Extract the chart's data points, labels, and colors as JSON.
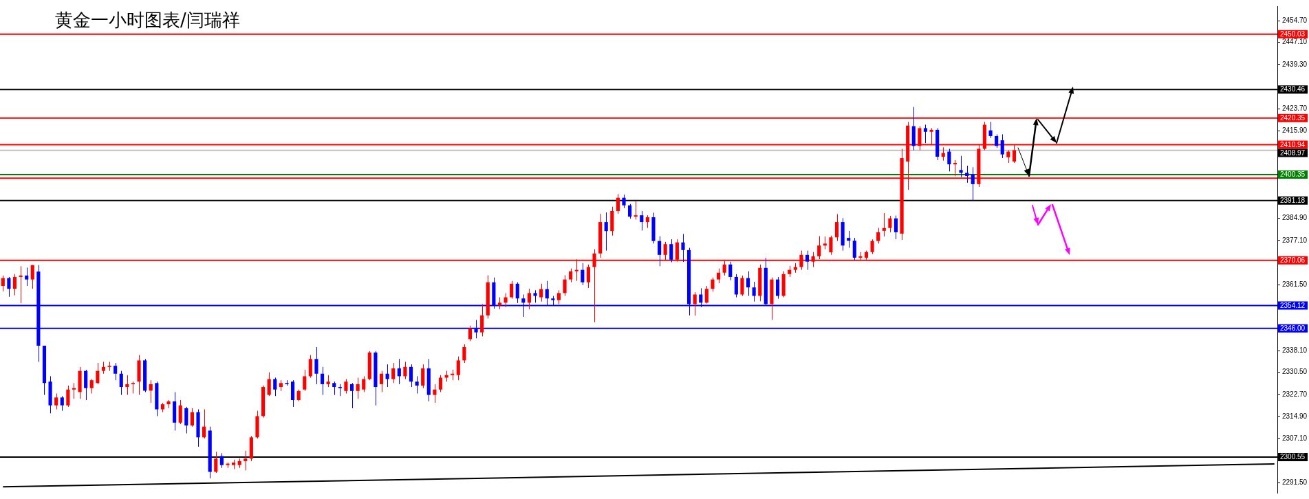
{
  "chart_data": {
    "type": "candlestick",
    "title": "黄金一小时图表/闫瑞祥",
    "categories": [
      null,
      null,
      null,
      null,
      null,
      null,
      null,
      null,
      null,
      null,
      null,
      null,
      null,
      null,
      null,
      null,
      null,
      null,
      null,
      null,
      null,
      null,
      null,
      null,
      null,
      null,
      null,
      null,
      null,
      null,
      null,
      null,
      null,
      null,
      null,
      null,
      null,
      null,
      null,
      null,
      null,
      null,
      null,
      null,
      null,
      null,
      null,
      null,
      null,
      null,
      null,
      null,
      null,
      null,
      null,
      null,
      null,
      null,
      null,
      null,
      null,
      null,
      null,
      null,
      null,
      null,
      null,
      null,
      null,
      null,
      null,
      null,
      null,
      null,
      null,
      null,
      null,
      null,
      null,
      null,
      null,
      null,
      null,
      null,
      null,
      null,
      null,
      null,
      null,
      null,
      null,
      null,
      null,
      null,
      null,
      null,
      null,
      null,
      null,
      null,
      null,
      null,
      null,
      null,
      null,
      null,
      null,
      null,
      null,
      null,
      null,
      null,
      null,
      null,
      null,
      null,
      null,
      null,
      null,
      null,
      null,
      null,
      null,
      null,
      null,
      null,
      null,
      null,
      null,
      null,
      null,
      null,
      null,
      null,
      null,
      null,
      null,
      null,
      null,
      null,
      null,
      null,
      null,
      null,
      null,
      null,
      null,
      null,
      null,
      null,
      null,
      null,
      null,
      null,
      null,
      null,
      null,
      null,
      null,
      null,
      null,
      null,
      null,
      null,
      null,
      null,
      null,
      null,
      null,
      null,
      null,
      null,
      null,
      null,
      null,
      null,
      null,
      null,
      null,
      null,
      null,
      null,
      null,
      null,
      null,
      null,
      null,
      null,
      null,
      null,
      null,
      null,
      null,
      null,
      null,
      null,
      null,
      null,
      null,
      null,
      null,
      null,
      null,
      null,
      null,
      null,
      null,
      null,
      null,
      null,
      null,
      null,
      null,
      null,
      null,
      null
    ],
    "series": [
      {
        "ohlc": [
          [
            2361.0,
            2364.7,
            2359.1,
            2363.8
          ],
          [
            2363.8,
            2364.2,
            2357.2,
            2360.0
          ],
          [
            2360.0,
            2365.2,
            2357.7,
            2364.2
          ],
          [
            2364.2,
            2368.0,
            2354.9,
            2364.7
          ],
          [
            2364.7,
            2367.5,
            2361.0,
            2363.3
          ],
          [
            2363.3,
            2368.4,
            2360.0,
            2368.4
          ],
          [
            2366.1,
            2368.4,
            2334.2,
            2339.9
          ],
          [
            2339.9,
            2339.9,
            2322.5,
            2326.7
          ],
          [
            2327.2,
            2329.1,
            2316.0,
            2318.8
          ],
          [
            2318.8,
            2323.0,
            2317.4,
            2321.6
          ],
          [
            2321.6,
            2322.1,
            2316.9,
            2318.8
          ],
          [
            2318.8,
            2325.8,
            2318.3,
            2324.4
          ],
          [
            2324.4,
            2326.7,
            2321.1,
            2324.9
          ],
          [
            2323.5,
            2332.4,
            2321.1,
            2331.0
          ],
          [
            2331.0,
            2331.4,
            2320.7,
            2324.9
          ],
          [
            2324.9,
            2328.1,
            2323.0,
            2327.7
          ],
          [
            2326.7,
            2333.8,
            2326.3,
            2331.0
          ],
          [
            2331.0,
            2334.2,
            2330.0,
            2332.4
          ],
          [
            2332.4,
            2334.2,
            2331.0,
            2332.8
          ],
          [
            2332.8,
            2333.8,
            2327.7,
            2330.0
          ],
          [
            2330.0,
            2331.0,
            2322.5,
            2325.3
          ],
          [
            2325.3,
            2329.5,
            2322.5,
            2326.3
          ],
          [
            2326.3,
            2327.2,
            2323.0,
            2326.7
          ],
          [
            2327.2,
            2336.6,
            2322.5,
            2334.7
          ],
          [
            2334.7,
            2335.2,
            2323.5,
            2324.0
          ],
          [
            2324.0,
            2327.7,
            2319.7,
            2326.3
          ],
          [
            2326.7,
            2327.2,
            2315.0,
            2317.4
          ],
          [
            2317.4,
            2319.7,
            2316.4,
            2319.2
          ],
          [
            2319.2,
            2320.7,
            2317.8,
            2320.2
          ],
          [
            2320.2,
            2323.5,
            2309.9,
            2312.7
          ],
          [
            2312.7,
            2320.7,
            2312.2,
            2318.8
          ],
          [
            2317.8,
            2318.3,
            2308.9,
            2311.7
          ],
          [
            2311.7,
            2317.8,
            2311.3,
            2316.4
          ],
          [
            2316.4,
            2317.4,
            2304.2,
            2307.5
          ],
          [
            2307.5,
            2317.4,
            2307.1,
            2311.3
          ],
          [
            2309.9,
            2311.3,
            2293.0,
            2295.3
          ],
          [
            2295.3,
            2302.4,
            2294.9,
            2300.0
          ],
          [
            2300.9,
            2301.9,
            2296.7,
            2297.7
          ],
          [
            2297.7,
            2298.6,
            2296.7,
            2298.2
          ],
          [
            2297.7,
            2299.6,
            2296.3,
            2298.6
          ],
          [
            2297.7,
            2300.0,
            2296.7,
            2299.1
          ],
          [
            2299.1,
            2302.8,
            2295.8,
            2300.0
          ],
          [
            2300.0,
            2308.0,
            2299.1,
            2307.5
          ],
          [
            2307.5,
            2316.9,
            2307.1,
            2315.0
          ],
          [
            2315.0,
            2325.8,
            2314.5,
            2325.3
          ],
          [
            2322.5,
            2330.5,
            2322.1,
            2328.1
          ],
          [
            2328.1,
            2328.6,
            2322.1,
            2324.4
          ],
          [
            2325.3,
            2327.7,
            2323.9,
            2326.7
          ],
          [
            2326.7,
            2327.7,
            2325.8,
            2326.3
          ],
          [
            2327.2,
            2327.7,
            2318.3,
            2320.7
          ],
          [
            2320.7,
            2324.4,
            2320.2,
            2323.9
          ],
          [
            2324.4,
            2331.4,
            2323.9,
            2329.1
          ],
          [
            2329.1,
            2336.6,
            2328.6,
            2335.2
          ],
          [
            2335.2,
            2339.4,
            2326.3,
            2330.0
          ],
          [
            2330.0,
            2332.4,
            2322.5,
            2326.3
          ],
          [
            2326.3,
            2329.5,
            2325.3,
            2327.2
          ],
          [
            2326.7,
            2327.2,
            2322.5,
            2325.3
          ],
          [
            2325.3,
            2326.3,
            2322.1,
            2324.9
          ],
          [
            2323.9,
            2328.1,
            2323.0,
            2327.2
          ],
          [
            2326.3,
            2326.7,
            2317.8,
            2323.9
          ],
          [
            2323.9,
            2328.6,
            2321.1,
            2326.3
          ],
          [
            2324.4,
            2329.1,
            2323.5,
            2328.1
          ],
          [
            2328.1,
            2338.0,
            2327.7,
            2337.5
          ],
          [
            2337.5,
            2338.0,
            2318.8,
            2325.3
          ],
          [
            2326.3,
            2331.0,
            2323.5,
            2330.0
          ],
          [
            2330.0,
            2333.3,
            2325.3,
            2328.1
          ],
          [
            2328.1,
            2333.8,
            2326.7,
            2331.9
          ],
          [
            2331.9,
            2335.2,
            2326.3,
            2329.1
          ],
          [
            2329.1,
            2334.2,
            2328.1,
            2332.4
          ],
          [
            2332.4,
            2333.3,
            2325.3,
            2327.2
          ],
          [
            2327.2,
            2329.1,
            2323.0,
            2325.8
          ],
          [
            2325.8,
            2333.3,
            2324.9,
            2331.9
          ],
          [
            2331.9,
            2335.2,
            2320.2,
            2322.5
          ],
          [
            2322.5,
            2326.3,
            2319.7,
            2324.4
          ],
          [
            2324.4,
            2329.5,
            2323.5,
            2328.6
          ],
          [
            2328.6,
            2331.0,
            2327.2,
            2329.5
          ],
          [
            2329.5,
            2331.4,
            2327.7,
            2330.0
          ],
          [
            2329.5,
            2336.1,
            2327.7,
            2334.7
          ],
          [
            2334.7,
            2340.4,
            2333.8,
            2339.4
          ],
          [
            2342.2,
            2347.0,
            2341.5,
            2346.0
          ],
          [
            2345.9,
            2349.0,
            2342.5,
            2344.6
          ],
          [
            2344.6,
            2354.6,
            2343.2,
            2350.6
          ],
          [
            2350.6,
            2364.8,
            2349.5,
            2362.3
          ],
          [
            2362.3,
            2364.0,
            2353.0,
            2354.1
          ],
          [
            2354.1,
            2357.0,
            2352.8,
            2355.1
          ],
          [
            2355.1,
            2358.5,
            2353.5,
            2357.0
          ],
          [
            2357.0,
            2362.8,
            2356.5,
            2361.8
          ],
          [
            2361.8,
            2362.3,
            2355.0,
            2356.6
          ],
          [
            2356.6,
            2358.0,
            2350.1,
            2355.1
          ],
          [
            2355.1,
            2360.0,
            2352.8,
            2358.5
          ],
          [
            2358.5,
            2359.5,
            2355.1,
            2357.5
          ],
          [
            2357.0,
            2361.8,
            2355.5,
            2359.9
          ],
          [
            2359.9,
            2362.8,
            2354.1,
            2356.6
          ],
          [
            2356.6,
            2357.5,
            2354.1,
            2356.0
          ],
          [
            2356.0,
            2359.5,
            2354.6,
            2358.5
          ],
          [
            2358.5,
            2364.8,
            2357.5,
            2363.3
          ],
          [
            2363.3,
            2367.2,
            2362.3,
            2366.2
          ],
          [
            2366.2,
            2370.4,
            2362.8,
            2366.7
          ],
          [
            2366.7,
            2369.1,
            2361.3,
            2362.3
          ],
          [
            2362.3,
            2368.6,
            2360.3,
            2367.7
          ],
          [
            2367.7,
            2374.0,
            2348.2,
            2372.5
          ],
          [
            2372.5,
            2386.5,
            2371.0,
            2383.6
          ],
          [
            2383.6,
            2387.0,
            2373.5,
            2380.4
          ],
          [
            2380.4,
            2389.0,
            2378.8,
            2387.5
          ],
          [
            2387.5,
            2393.5,
            2386.5,
            2392.2
          ],
          [
            2392.2,
            2393.3,
            2388.5,
            2389.5
          ],
          [
            2389.5,
            2390.0,
            2384.8,
            2385.5
          ],
          [
            2385.5,
            2390.9,
            2384.5,
            2386.0
          ],
          [
            2386.0,
            2387.5,
            2380.6,
            2383.6
          ],
          [
            2383.6,
            2386.0,
            2381.5,
            2385.3
          ],
          [
            2385.3,
            2386.9,
            2376.0,
            2376.9
          ],
          [
            2376.9,
            2378.6,
            2368.0,
            2372.0
          ],
          [
            2372.0,
            2376.6,
            2370.0,
            2375.8
          ],
          [
            2375.8,
            2377.5,
            2369.4,
            2370.3
          ],
          [
            2370.3,
            2377.5,
            2369.6,
            2376.4
          ],
          [
            2376.4,
            2379.4,
            2369.5,
            2373.7
          ],
          [
            2373.7,
            2374.5,
            2350.6,
            2354.6
          ],
          [
            2354.6,
            2358.8,
            2350.5,
            2358.0
          ],
          [
            2358.0,
            2360.2,
            2353.5,
            2355.1
          ],
          [
            2355.1,
            2361.0,
            2354.8,
            2360.0
          ],
          [
            2360.0,
            2364.0,
            2359.0,
            2363.3
          ],
          [
            2363.3,
            2367.2,
            2362.0,
            2365.7
          ],
          [
            2365.7,
            2369.9,
            2364.7,
            2368.6
          ],
          [
            2368.6,
            2369.6,
            2363.0,
            2364.2
          ],
          [
            2364.2,
            2365.2,
            2357.0,
            2358.0
          ],
          [
            2358.0,
            2364.7,
            2357.5,
            2363.8
          ],
          [
            2363.8,
            2366.2,
            2357.5,
            2360.5
          ],
          [
            2360.5,
            2362.5,
            2355.5,
            2357.5
          ],
          [
            2357.5,
            2368.6,
            2355.6,
            2367.4
          ],
          [
            2367.4,
            2371.0,
            2354.0,
            2354.6
          ],
          [
            2354.6,
            2364.0,
            2349.0,
            2363.3
          ],
          [
            2363.3,
            2364.2,
            2356.5,
            2357.5
          ],
          [
            2357.5,
            2366.2,
            2357.0,
            2365.2
          ],
          [
            2365.2,
            2368.1,
            2364.2,
            2366.7
          ],
          [
            2366.7,
            2369.1,
            2365.7,
            2367.7
          ],
          [
            2367.7,
            2373.5,
            2366.7,
            2372.0
          ],
          [
            2372.0,
            2373.5,
            2366.7,
            2369.6
          ],
          [
            2369.6,
            2373.0,
            2367.7,
            2371.5
          ],
          [
            2371.5,
            2378.6,
            2370.5,
            2375.3
          ],
          [
            2375.3,
            2378.5,
            2374.0,
            2376.0
          ],
          [
            2372.9,
            2378.8,
            2372.0,
            2378.2
          ],
          [
            2378.2,
            2386.4,
            2376.9,
            2383.6
          ],
          [
            2383.6,
            2385.0,
            2373.5,
            2375.3
          ],
          [
            2378.0,
            2380.5,
            2374.5,
            2377.0
          ],
          [
            2377.0,
            2378.0,
            2370.0,
            2371.0
          ],
          [
            2371.0,
            2373.0,
            2370.0,
            2371.5
          ],
          [
            2371.0,
            2373.5,
            2370.3,
            2373.0
          ],
          [
            2373.0,
            2377.5,
            2372.3,
            2376.9
          ],
          [
            2376.9,
            2381.5,
            2376.0,
            2380.0
          ],
          [
            2380.5,
            2386.8,
            2378.5,
            2381.5
          ],
          [
            2381.5,
            2385.8,
            2380.0,
            2384.9
          ],
          [
            2384.9,
            2385.9,
            2377.5,
            2380.0
          ],
          [
            2379.5,
            2409.5,
            2377.3,
            2406.2
          ],
          [
            2405.0,
            2419.0,
            2395.0,
            2417.7
          ],
          [
            2417.5,
            2424.3,
            2409.0,
            2410.5
          ],
          [
            2410.5,
            2417.5,
            2409.0,
            2416.8
          ],
          [
            2416.8,
            2418.0,
            2411.5,
            2415.5
          ],
          [
            2415.5,
            2416.8,
            2411.0,
            2416.2
          ],
          [
            2416.2,
            2416.8,
            2405.5,
            2406.7
          ],
          [
            2406.7,
            2410.0,
            2405.3,
            2408.0
          ],
          [
            2408.5,
            2409.5,
            2401.5,
            2404.0
          ],
          [
            2404.0,
            2405.5,
            2399.8,
            2404.5
          ],
          [
            2402.0,
            2407.0,
            2399.5,
            2401.0
          ],
          [
            2401.0,
            2403.5,
            2397.5,
            2399.9
          ],
          [
            2400.5,
            2403.0,
            2391.2,
            2397.0
          ],
          [
            2397.0,
            2411.0,
            2396.0,
            2409.5
          ],
          [
            2409.5,
            2419.0,
            2409.0,
            2418.0
          ],
          [
            2416.0,
            2419.0,
            2413.3,
            2414.0
          ],
          [
            2414.0,
            2414.6,
            2409.8,
            2410.5
          ],
          [
            2412.5,
            2414.6,
            2406.2,
            2407.5
          ],
          [
            2406.5,
            2409.0,
            2404.5,
            2408.5
          ],
          [
            2405.0,
            2411.0,
            2404.5,
            2409.0
          ],
          null,
          null,
          null,
          null,
          null,
          null,
          null,
          null,
          null,
          null,
          null,
          null,
          null,
          null,
          null,
          null,
          null,
          null,
          null,
          null,
          null,
          null,
          null,
          null,
          null,
          null,
          null,
          null,
          null,
          null,
          null,
          null,
          null,
          null,
          null,
          null,
          null,
          null,
          null,
          null,
          null,
          null,
          null,
          null
        ],
        "colors": [
          "#ff0000",
          "#0000ff",
          "#ff0000",
          "#ff0000",
          "#0000ff",
          "#ff0000",
          "#0000ff",
          "#0000ff",
          "#0000ff",
          "#ff0000",
          "#0000ff",
          "#ff0000",
          "#ff0000",
          "#ff0000",
          "#0000ff",
          "#ff0000",
          "#ff0000",
          "#ff0000",
          "#ff0000",
          "#0000ff",
          "#0000ff",
          "#ff0000",
          "#ff0000",
          "#ff0000",
          "#0000ff",
          "#ff0000",
          "#0000ff",
          "#ff0000",
          "#ff0000",
          "#0000ff",
          "#ff0000",
          "#0000ff",
          "#ff0000",
          "#0000ff",
          "#ff0000",
          "#0000ff",
          "#ff0000",
          "#0000ff",
          "#ff0000",
          "#ff0000",
          "#ff0000",
          "#ff0000",
          "#ff0000",
          "#ff0000",
          "#ff0000",
          "#ff0000",
          "#0000ff",
          "#ff0000",
          "#0000ff",
          "#0000ff",
          "#ff0000",
          "#ff0000",
          "#ff0000",
          "#0000ff",
          "#0000ff",
          "#ff0000",
          "#0000ff",
          "#0000ff",
          "#ff0000",
          "#0000ff",
          "#ff0000",
          "#ff0000",
          "#ff0000",
          "#0000ff",
          "#ff0000",
          "#0000ff",
          "#ff0000",
          "#0000ff",
          "#ff0000",
          "#0000ff",
          "#0000ff",
          "#ff0000",
          "#0000ff",
          "#ff0000",
          "#ff0000",
          "#ff0000",
          "#ff0000",
          "#ff0000",
          "#ff0000",
          "#ff0000",
          "#0000ff",
          "#ff0000",
          "#ff0000",
          "#0000ff",
          "#ff0000",
          "#ff0000",
          "#ff0000",
          "#0000ff",
          "#0000ff",
          "#ff0000",
          "#0000ff",
          "#ff0000",
          "#0000ff",
          "#0000ff",
          "#ff0000",
          "#ff0000",
          "#ff0000",
          "#ff0000",
          "#0000ff",
          "#ff0000",
          "#ff0000",
          "#ff0000",
          "#0000ff",
          "#ff0000",
          "#ff0000",
          "#0000ff",
          "#0000ff",
          "#ff0000",
          "#0000ff",
          "#ff0000",
          "#0000ff",
          "#0000ff",
          "#ff0000",
          "#0000ff",
          "#ff0000",
          "#0000ff",
          "#0000ff",
          "#ff0000",
          "#0000ff",
          "#ff0000",
          "#ff0000",
          "#ff0000",
          "#ff0000",
          "#0000ff",
          "#0000ff",
          "#ff0000",
          "#0000ff",
          "#0000ff",
          "#ff0000",
          "#0000ff",
          "#ff0000",
          "#0000ff",
          "#ff0000",
          "#ff0000",
          "#ff0000",
          "#ff0000",
          "#0000ff",
          "#ff0000",
          "#ff0000",
          "#ff0000",
          "#ff0000",
          "#ff0000",
          "#0000ff",
          "#0000ff",
          "#0000ff",
          "#ff0000",
          "#ff0000",
          "#ff0000",
          "#ff0000",
          "#ff0000",
          "#ff0000",
          "#0000ff",
          "#ff0000",
          "#ff0000",
          "#0000ff",
          "#ff0000",
          "#0000ff",
          "#ff0000",
          "#0000ff",
          "#ff0000",
          "#0000ff",
          "#ff0000",
          "#0000ff",
          "#0000ff",
          "#0000ff",
          "#ff0000",
          "#ff0000",
          "#0000ff",
          "#0000ff",
          "#0000ff",
          "#ff0000",
          "#ff0000",
          null,
          null,
          null,
          null,
          null,
          null,
          null,
          null,
          null,
          null,
          null,
          null,
          null,
          null,
          null,
          null,
          null,
          null,
          null,
          null,
          null,
          null,
          null,
          null,
          null,
          null,
          null,
          null,
          null,
          null,
          null,
          null,
          null,
          null,
          null,
          null,
          null,
          null,
          null,
          null,
          null,
          null,
          null,
          null
        ]
      },
      {
        "type": "line",
        "color": "#000000",
        "values": [
          2290.0,
          null,
          null,
          null,
          null,
          null,
          null,
          null,
          null,
          null,
          null,
          null,
          null,
          null,
          null,
          null,
          null,
          null,
          null,
          null,
          null,
          null,
          null,
          null,
          null,
          null,
          null,
          null,
          null,
          null,
          null,
          null,
          null,
          null,
          null,
          null,
          null,
          null,
          null,
          null,
          null,
          null,
          null,
          null,
          null,
          null,
          null,
          null,
          null,
          null,
          null,
          null,
          null,
          null,
          null,
          null,
          null,
          null,
          null,
          null,
          null,
          null,
          null,
          null,
          null,
          null,
          null,
          null,
          null,
          null,
          null,
          null,
          null,
          null,
          null,
          null,
          null,
          null,
          null,
          null,
          null,
          null,
          null,
          null,
          null,
          null,
          null,
          null,
          null,
          null,
          null,
          null,
          null,
          null,
          null,
          null,
          null,
          null,
          null,
          null,
          null,
          null,
          null,
          null,
          null,
          null,
          null,
          null,
          null,
          null,
          null,
          null,
          null,
          null,
          null,
          null,
          null,
          null,
          null,
          null,
          null,
          null,
          null,
          null,
          null,
          null,
          null,
          null,
          null,
          null,
          null,
          null,
          null,
          null,
          null,
          null,
          null,
          null,
          null,
          null,
          null,
          null,
          null,
          null,
          null,
          null,
          null,
          null,
          null,
          null,
          null,
          null,
          null,
          null,
          null,
          null,
          null,
          null,
          null,
          null,
          null,
          null,
          null,
          null,
          null,
          null,
          null,
          null,
          null,
          null,
          null,
          null,
          null,
          null,
          null,
          null,
          null,
          null,
          null,
          null,
          null,
          null,
          null,
          null,
          null,
          null,
          null,
          null,
          null,
          null,
          null,
          null,
          null,
          null,
          null,
          null,
          null,
          null,
          null,
          null,
          null,
          null,
          null,
          null,
          null,
          null,
          null,
          null,
          null,
          null,
          null,
          null,
          null,
          null,
          null,
          2298.1
        ]
      }
    ],
    "ylim": [
      2287.9,
      2459.9
    ],
    "yticks": [
      {
        "value": 2454.7,
        "label": "2454.70"
      },
      {
        "value": 2447.1,
        "label": "2447.10"
      },
      {
        "value": 2439.3,
        "label": "2439.30"
      },
      {
        "value": 2423.7,
        "label": "2423.70"
      },
      {
        "value": 2415.9,
        "label": "2415.90"
      },
      {
        "value": 2384.9,
        "label": "2384.90"
      },
      {
        "value": 2377.1,
        "label": "2377.10"
      },
      {
        "value": 2361.5,
        "label": "2361.50"
      },
      {
        "value": 2338.1,
        "label": "2338.10"
      },
      {
        "value": 2330.5,
        "label": "2330.50"
      },
      {
        "value": 2322.7,
        "label": "2322.70"
      },
      {
        "value": 2314.9,
        "label": "2314.90"
      },
      {
        "value": 2307.1,
        "label": "2307.10"
      },
      {
        "value": 2291.5,
        "label": "2291.50"
      }
    ],
    "ref_lines": [
      {
        "axis": "y",
        "value": 2450.03,
        "label": "2450.03",
        "color": "#ff0000"
      },
      {
        "axis": "y",
        "value": 2430.46,
        "label": "2430.46",
        "color": "#000000"
      },
      {
        "axis": "y",
        "value": 2420.35,
        "label": "2420.35",
        "color": "#ff0000"
      },
      {
        "axis": "y",
        "value": 2410.94,
        "label": "2410.94",
        "color": "#ff0000"
      },
      {
        "axis": "y",
        "value": 2408.97,
        "label": "2408.97",
        "color": "#c0c0c0"
      },
      {
        "axis": "y",
        "value": 2399.1,
        "color": "#ff0000"
      },
      {
        "axis": "y",
        "value": 2400.35,
        "label": "2400.35",
        "color": "#008000"
      },
      {
        "axis": "y",
        "value": 2391.18,
        "label": "2391.18",
        "color": "#000000"
      },
      {
        "axis": "y",
        "value": 2370.06,
        "label": "2370.06",
        "color": "#ff0000"
      },
      {
        "axis": "y",
        "value": 2354.12,
        "label": "2354.12",
        "color": "#0000ff"
      },
      {
        "axis": "y",
        "value": 2346.0,
        "label": "2346.00",
        "color": "#0000ff"
      },
      {
        "axis": "y",
        "value": 2300.55,
        "label": "2300.55",
        "color": "#000000"
      }
    ],
    "tick_labels": "y",
    "legend": false
  }
}
